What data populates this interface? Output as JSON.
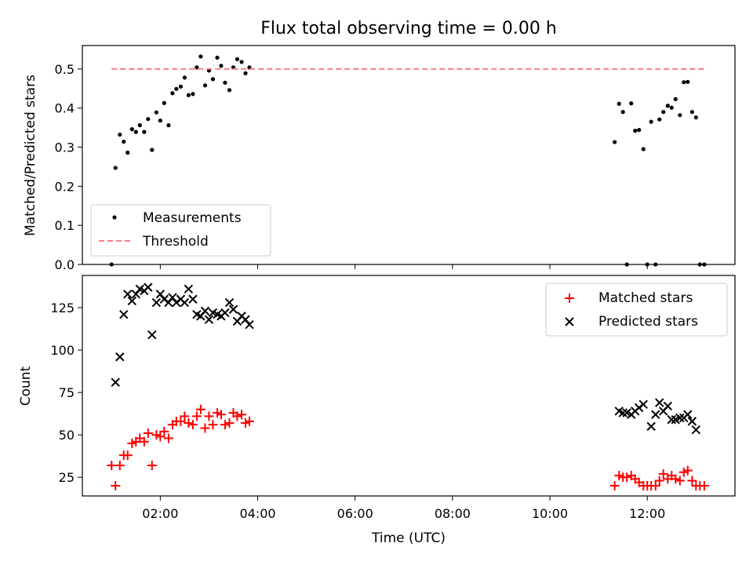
{
  "chart_data": [
    {
      "type": "scatter",
      "title": "Flux total observing time = 0.00 h",
      "xlabel": "",
      "ylabel": "Matched/Predicted stars",
      "xlim": [
        0.4,
        13.8
      ],
      "ylim": [
        0,
        0.56
      ],
      "yticks": [
        0.0,
        0.1,
        0.2,
        0.3,
        0.4,
        0.5
      ],
      "ytick_labels": [
        "0.0",
        "0.1",
        "0.2",
        "0.3",
        "0.4",
        "0.5"
      ],
      "legend_position": "lower-left",
      "series": [
        {
          "name": "Measurements",
          "kind": "points",
          "color": "#000000",
          "x": [
            1.0,
            1.08,
            1.17,
            1.25,
            1.33,
            1.42,
            1.5,
            1.58,
            1.67,
            1.75,
            1.83,
            1.92,
            2.0,
            2.08,
            2.17,
            2.25,
            2.33,
            2.42,
            2.5,
            2.58,
            2.67,
            2.75,
            2.83,
            2.92,
            3.0,
            3.08,
            3.17,
            3.25,
            3.33,
            3.42,
            3.5,
            3.58,
            3.67,
            3.75,
            3.83,
            11.33,
            11.42,
            11.5,
            11.58,
            11.67,
            11.75,
            11.83,
            11.92,
            12.0,
            12.08,
            12.17,
            12.25,
            12.33,
            12.42,
            12.5,
            12.58,
            12.67,
            12.75,
            12.83,
            12.92,
            13.0,
            13.08,
            13.17
          ],
          "y": [
            0.0,
            0.247,
            0.332,
            0.314,
            0.286,
            0.346,
            0.339,
            0.356,
            0.339,
            0.372,
            0.293,
            0.389,
            0.368,
            0.413,
            0.356,
            0.438,
            0.449,
            0.455,
            0.478,
            0.433,
            0.436,
            0.504,
            0.532,
            0.458,
            0.496,
            0.474,
            0.529,
            0.508,
            0.465,
            0.446,
            0.504,
            0.525,
            0.518,
            0.489,
            0.504,
            0.313,
            0.411,
            0.39,
            0.0,
            0.412,
            0.342,
            0.344,
            0.295,
            0.0,
            0.365,
            0.0,
            0.371,
            0.39,
            0.406,
            0.401,
            0.423,
            0.382,
            0.466,
            0.467,
            0.39,
            0.376,
            0.0,
            0.0
          ]
        },
        {
          "name": "Threshold",
          "kind": "dashed-line",
          "color": "#ff7f7f",
          "x": [
            1.0,
            13.17
          ],
          "y": [
            0.5,
            0.5
          ]
        }
      ]
    },
    {
      "type": "scatter",
      "title": "",
      "xlabel": "Time (UTC)",
      "ylabel": "Count",
      "xlim": [
        0.4,
        13.8
      ],
      "ylim": [
        14,
        144
      ],
      "xticks": [
        2,
        4,
        6,
        8,
        10,
        12
      ],
      "xtick_labels": [
        "02:00",
        "04:00",
        "06:00",
        "08:00",
        "10:00",
        "12:00"
      ],
      "yticks": [
        25,
        50,
        75,
        100,
        125
      ],
      "ytick_labels": [
        "25",
        "50",
        "75",
        "100",
        "125"
      ],
      "legend_position": "upper-right",
      "series": [
        {
          "name": "Matched stars",
          "marker": "plus",
          "color": "#ff0000",
          "x": [
            1.0,
            1.08,
            1.17,
            1.25,
            1.33,
            1.42,
            1.5,
            1.58,
            1.67,
            1.75,
            1.83,
            1.92,
            2.0,
            2.08,
            2.17,
            2.25,
            2.33,
            2.42,
            2.5,
            2.58,
            2.67,
            2.75,
            2.83,
            2.92,
            3.0,
            3.08,
            3.17,
            3.25,
            3.33,
            3.42,
            3.5,
            3.58,
            3.67,
            3.75,
            3.83,
            11.33,
            11.42,
            11.5,
            11.58,
            11.67,
            11.75,
            11.83,
            11.92,
            12.0,
            12.08,
            12.17,
            12.25,
            12.33,
            12.42,
            12.5,
            12.58,
            12.67,
            12.75,
            12.83,
            12.92,
            13.0,
            13.08,
            13.17
          ],
          "y": [
            32,
            20,
            32,
            38,
            38,
            45,
            46,
            48,
            46,
            51,
            32,
            50,
            49,
            52,
            48,
            56,
            58,
            58,
            61,
            57,
            56,
            61,
            65,
            54,
            61,
            56,
            63,
            62,
            56,
            57,
            63,
            61,
            62,
            57,
            58,
            20,
            26,
            25,
            25,
            26,
            24,
            22,
            20,
            20,
            20,
            20,
            23,
            27,
            24,
            26,
            24,
            23,
            28,
            29,
            23,
            20,
            20,
            20
          ]
        },
        {
          "name": "Predicted stars",
          "marker": "x",
          "color": "#000000",
          "x": [
            1.08,
            1.17,
            1.25,
            1.33,
            1.42,
            1.5,
            1.58,
            1.67,
            1.75,
            1.83,
            1.92,
            2.0,
            2.08,
            2.17,
            2.25,
            2.33,
            2.42,
            2.5,
            2.58,
            2.67,
            2.75,
            2.83,
            2.92,
            3.0,
            3.08,
            3.17,
            3.25,
            3.33,
            3.42,
            3.5,
            3.58,
            3.67,
            3.75,
            3.83,
            11.42,
            11.5,
            11.58,
            11.67,
            11.75,
            11.83,
            11.92,
            12.08,
            12.17,
            12.25,
            12.33,
            12.42,
            12.5,
            12.58,
            12.67,
            12.75,
            12.83,
            12.92,
            13.0
          ],
          "y": [
            81,
            96,
            121,
            133,
            129,
            133,
            136,
            135,
            137,
            109,
            128,
            133,
            130,
            128,
            131,
            128,
            130,
            128,
            136,
            130,
            121,
            120,
            123,
            118,
            122,
            121,
            120,
            122,
            128,
            124,
            117,
            120,
            118,
            115,
            64,
            63,
            63,
            62,
            64,
            66,
            68,
            55,
            62,
            69,
            64,
            67,
            59,
            59,
            60,
            60,
            62,
            58,
            53
          ]
        }
      ]
    }
  ]
}
